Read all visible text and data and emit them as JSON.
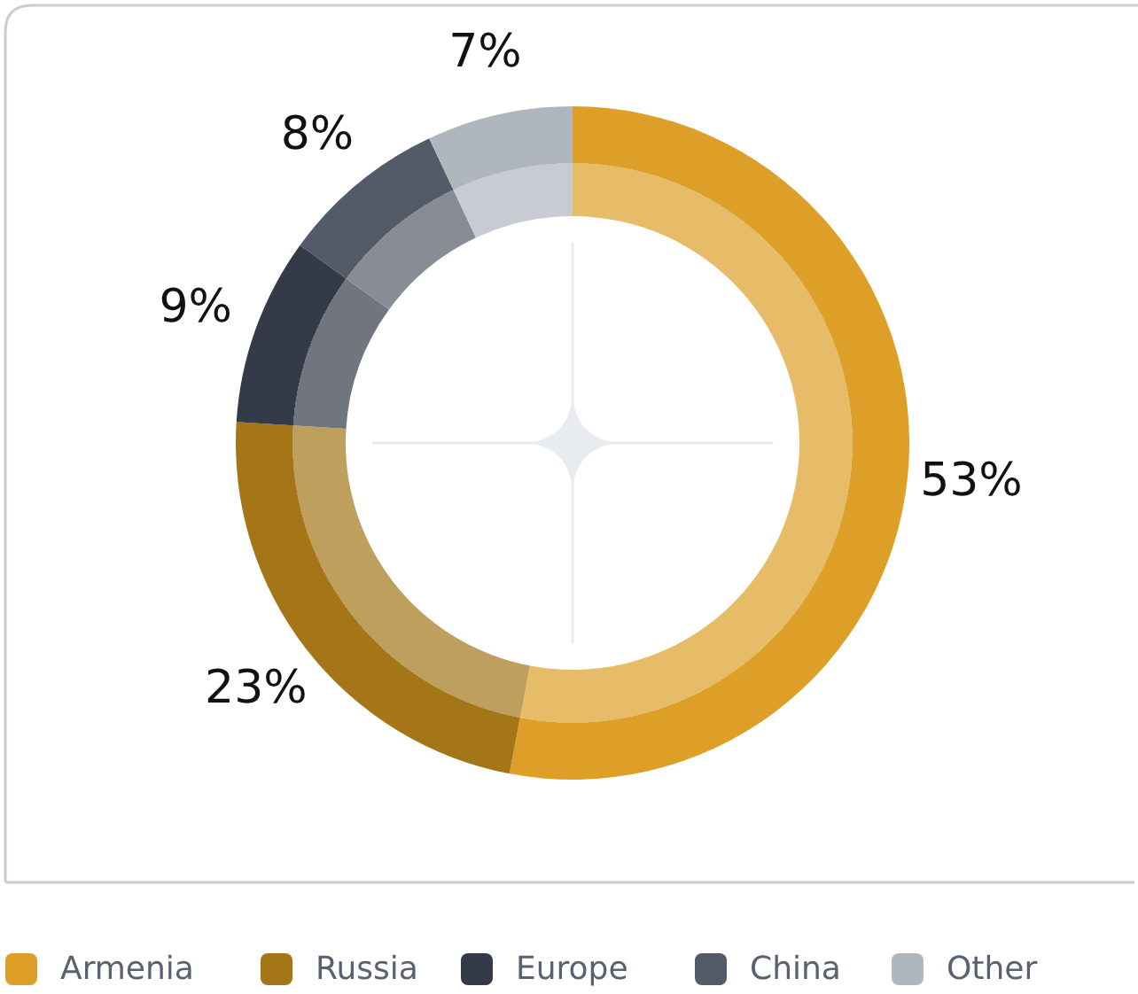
{
  "chart_data": {
    "type": "donut",
    "categories": [
      "Armenia",
      "Russia",
      "Europe",
      "China",
      "Other"
    ],
    "values": [
      53,
      23,
      9,
      8,
      7
    ],
    "colors": [
      "#dd9f27",
      "#a47618",
      "#343a48",
      "#535a68",
      "#b0b6be"
    ],
    "value_labels": [
      "53%",
      "23%",
      "9%",
      "8%",
      "7%"
    ],
    "legend": "bottom"
  }
}
